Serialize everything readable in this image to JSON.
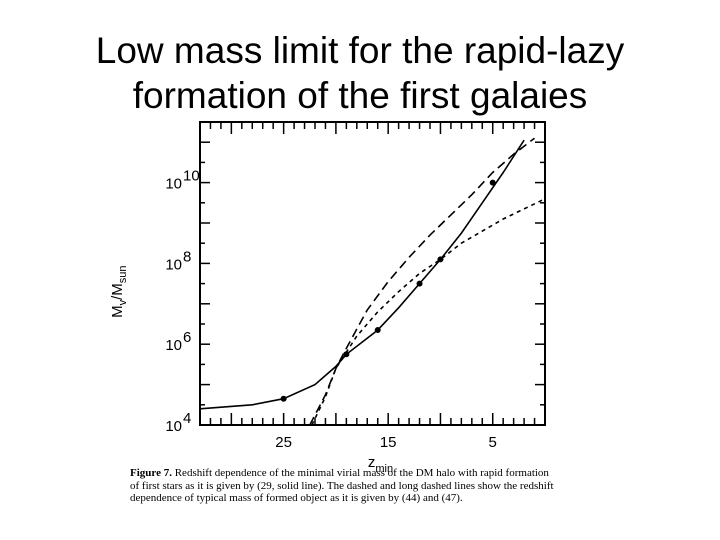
{
  "slide": {
    "title": "Low mass limit for the rapid-lazy\nformation of the first galaies"
  },
  "figure": {
    "caption_label": "Figure 7.",
    "caption_text": "Redshift dependence of the minimal virial mass of the DM halo with rapid formation of first stars as it is given by (29, solid line). The dashed and long dashed lines show the redshift dependence of typical mass of formed object as it is given by (44) and (47)."
  },
  "chart_data": {
    "type": "line",
    "title": "",
    "xlabel": "z_min",
    "ylabel": "M_v/M_sun",
    "xlim": [
      33,
      0
    ],
    "ylim": [
      4,
      11.5
    ],
    "y_scale": "log",
    "x_tick_values": [
      25,
      15,
      5
    ],
    "x_tick_labels": [
      "25",
      "15",
      "5"
    ],
    "y_tick_values": [
      4,
      6,
      8,
      10
    ],
    "y_tick_labels": [
      {
        "base": "10",
        "exp": "4"
      },
      {
        "base": "10",
        "exp": "6"
      },
      {
        "base": "10",
        "exp": "8"
      },
      {
        "base": "10",
        "exp": "10"
      }
    ],
    "series": [
      {
        "style": "solid",
        "x": [
          33,
          28,
          25,
          22,
          20,
          19,
          16,
          14,
          12,
          10,
          8,
          6,
          4,
          2
        ],
        "y": [
          4.4,
          4.5,
          4.65,
          5.0,
          5.45,
          5.75,
          6.35,
          6.9,
          7.5,
          8.1,
          8.75,
          9.5,
          10.25,
          11.05
        ]
      },
      {
        "style": "dashed",
        "x": [
          22.3,
          21,
          20,
          18,
          16,
          14,
          12,
          10,
          8,
          6,
          4,
          2,
          0
        ],
        "y": [
          4.0,
          4.7,
          5.4,
          6.2,
          6.8,
          7.3,
          7.75,
          8.1,
          8.5,
          8.8,
          9.1,
          9.35,
          9.6
        ]
      },
      {
        "style": "long-dashed",
        "x": [
          22.5,
          21,
          20,
          19,
          17,
          15,
          13,
          11,
          9,
          7,
          5,
          3,
          1
        ],
        "y": [
          4.0,
          4.75,
          5.4,
          5.9,
          6.85,
          7.55,
          8.15,
          8.7,
          9.2,
          9.7,
          10.25,
          10.7,
          11.1
        ]
      }
    ],
    "markers": {
      "x": [
        25,
        19,
        16,
        12,
        10,
        5
      ],
      "y": [
        4.65,
        5.75,
        6.35,
        7.5,
        8.1,
        10.0
      ]
    }
  }
}
